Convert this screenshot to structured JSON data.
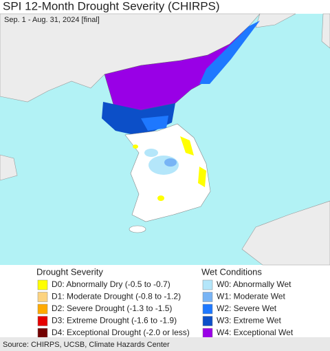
{
  "header": {
    "title": "SPI 12-Month Drought Severity (CHIRPS)",
    "subtitle": "Sep. 1 - Aug. 31, 2024 [final]"
  },
  "legend": [
    {
      "title": "Drought Severity",
      "items": [
        {
          "label": "D0: Abnormally Dry (-0.5 to -0.7)",
          "color": "#ffff00"
        },
        {
          "label": "D1: Moderate Drought (-0.8 to -1.2)",
          "color": "#fcd37f"
        },
        {
          "label": "D2: Severe Drought (-1.3 to -1.5)",
          "color": "#ffaa00"
        },
        {
          "label": "D3: Extreme Drought (-1.6 to -1.9)",
          "color": "#e60000"
        },
        {
          "label": "D4: Exceptional Drought (-2.0 or less)",
          "color": "#730000"
        }
      ]
    },
    {
      "title": "Wet Conditions",
      "items": [
        {
          "label": "W0: Abnormally Wet",
          "color": "#b4e6fa"
        },
        {
          "label": "W1: Moderate Wet",
          "color": "#78b4f5"
        },
        {
          "label": "W2: Severe Wet",
          "color": "#1e78ff"
        },
        {
          "label": "W3: Extreme Wet",
          "color": "#0c4fc8"
        },
        {
          "label": "W4: Exceptional Wet",
          "color": "#9900e6"
        }
      ]
    }
  ],
  "footer": {
    "source": "Source: CHIRPS, UCSB, Climate Hazards Center"
  }
}
